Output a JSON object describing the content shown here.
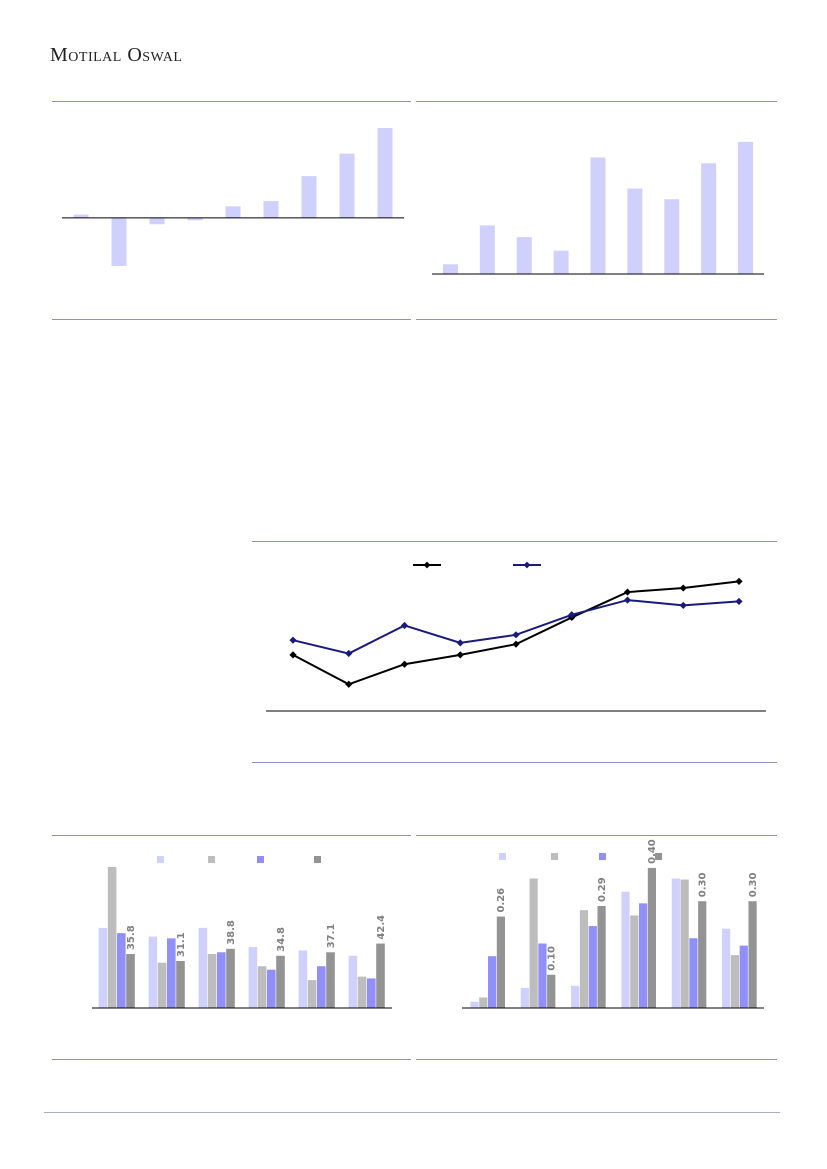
{
  "header": {
    "logo_text": "Motilal Oswal"
  },
  "colors": {
    "bar_light": "#cfd0fb",
    "bar_grey_light": "#bdbdbd",
    "bar_blue": "#9090f8",
    "bar_grey": "#939393",
    "line_black": "#000000",
    "line_navy": "#1a1a7a",
    "rule": "#8d92b8"
  },
  "chart_data": [
    {
      "type": "bar",
      "values": [
        0.5,
        -7.5,
        -1.0,
        -0.4,
        1.8,
        2.6,
        6.5,
        10.0,
        14.0
      ],
      "ylim": [
        -10,
        14
      ]
    },
    {
      "type": "bar",
      "values": [
        1.0,
        5.0,
        3.8,
        2.4,
        12.0,
        8.8,
        7.7,
        11.4,
        13.6
      ],
      "ylim": [
        0,
        14
      ]
    },
    {
      "type": "line",
      "series": [
        {
          "values": [
            11.2,
            9.0,
            10.5,
            11.2,
            12.0,
            14.0,
            15.9,
            16.2,
            16.7
          ]
        },
        {
          "values": [
            12.3,
            11.3,
            13.4,
            12.1,
            12.7,
            14.2,
            15.3,
            14.9,
            15.2
          ]
        }
      ],
      "ylim": [
        7,
        18
      ]
    },
    {
      "type": "bar",
      "groups": 6,
      "series": [
        {
          "values": [
            46,
            41,
            46,
            35,
            33,
            30
          ]
        },
        {
          "values": [
            81,
            26,
            31,
            24,
            16,
            18
          ]
        },
        {
          "values": [
            43,
            40,
            32,
            22,
            24,
            17
          ]
        },
        {
          "values": [
            31,
            27,
            34,
            30,
            32,
            37
          ]
        }
      ],
      "data_labels": [
        "35.8",
        "31.1",
        "38.8",
        "34.8",
        "37.1",
        "42.4"
      ],
      "ylim": [
        0,
        85
      ]
    },
    {
      "type": "bar",
      "groups": 6,
      "series": [
        {
          "values": [
            0.012,
            0.038,
            0.042,
            0.22,
            0.245,
            0.15
          ]
        },
        {
          "values": [
            0.02,
            0.245,
            0.185,
            0.175,
            0.243,
            0.1
          ]
        },
        {
          "values": [
            0.098,
            0.122,
            0.155,
            0.198,
            0.132,
            0.118
          ]
        },
        {
          "values": [
            0.173,
            0.063,
            0.193,
            0.265,
            0.202,
            0.202
          ]
        }
      ],
      "data_labels": [
        "0.26",
        "0.10",
        "0.29",
        "0.40",
        "0.30",
        "0.30"
      ],
      "ylim": [
        0,
        0.28
      ]
    }
  ]
}
